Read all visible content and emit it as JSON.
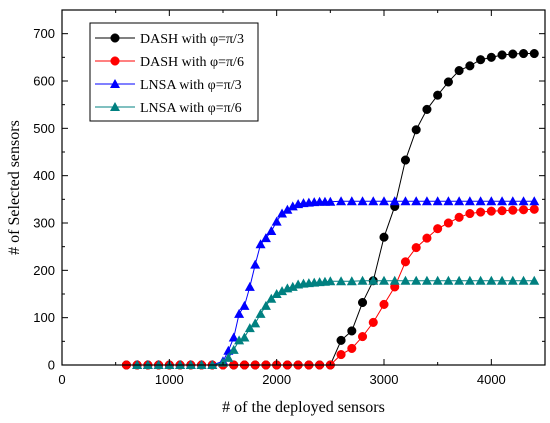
{
  "chart_data": {
    "type": "line",
    "title": "",
    "xlabel": "# of the deployed sensors",
    "ylabel": "# of Selected sensors",
    "xlim": [
      0,
      4500
    ],
    "ylim": [
      0,
      750
    ],
    "xticks": [
      0,
      1000,
      2000,
      3000,
      4000
    ],
    "yticks": [
      0,
      100,
      200,
      300,
      400,
      500,
      600,
      700
    ],
    "grid": false,
    "legend_position": "top-left",
    "series": [
      {
        "name": "DASH with φ=π/3",
        "color": "#000000",
        "marker": "circle",
        "x": [
          600,
          700,
          800,
          900,
          1000,
          1100,
          1200,
          1300,
          1400,
          1500,
          1600,
          1700,
          1800,
          1900,
          2000,
          2100,
          2200,
          2300,
          2400,
          2500,
          2600,
          2700,
          2800,
          2900,
          3000,
          3100,
          3200,
          3300,
          3400,
          3500,
          3600,
          3700,
          3800,
          3900,
          4000,
          4100,
          4200,
          4300,
          4400
        ],
        "y": [
          0,
          0,
          0,
          0,
          0,
          0,
          0,
          0,
          0,
          0,
          0,
          0,
          0,
          0,
          0,
          0,
          0,
          0,
          0,
          0,
          52,
          72,
          132,
          178,
          270,
          335,
          433,
          497,
          540,
          570,
          598,
          622,
          632,
          645,
          650,
          655,
          657,
          658,
          658
        ]
      },
      {
        "name": "DASH with φ=π/6",
        "color": "#ff0000",
        "marker": "circle",
        "x": [
          600,
          700,
          800,
          900,
          1000,
          1100,
          1200,
          1300,
          1400,
          1500,
          1600,
          1700,
          1800,
          1900,
          2000,
          2100,
          2200,
          2300,
          2400,
          2500,
          2600,
          2700,
          2800,
          2900,
          3000,
          3100,
          3200,
          3300,
          3400,
          3500,
          3600,
          3700,
          3800,
          3900,
          4000,
          4100,
          4200,
          4300,
          4400
        ],
        "y": [
          0,
          0,
          0,
          0,
          0,
          0,
          0,
          0,
          0,
          0,
          0,
          0,
          0,
          0,
          0,
          0,
          0,
          0,
          0,
          0,
          22,
          35,
          60,
          90,
          128,
          165,
          218,
          248,
          268,
          288,
          300,
          312,
          320,
          323,
          325,
          326,
          327,
          328,
          329
        ]
      },
      {
        "name": "LNSA with φ=π/3",
        "color": "#0000ff",
        "marker": "triangle",
        "x": [
          700,
          800,
          900,
          1000,
          1100,
          1200,
          1300,
          1400,
          1500,
          1550,
          1600,
          1650,
          1700,
          1750,
          1800,
          1850,
          1900,
          1950,
          2000,
          2050,
          2100,
          2150,
          2200,
          2250,
          2300,
          2350,
          2400,
          2450,
          2500,
          2600,
          2700,
          2800,
          2900,
          3000,
          3100,
          3200,
          3300,
          3400,
          3500,
          3600,
          3700,
          3800,
          3900,
          4000,
          4100,
          4200,
          4300,
          4400
        ],
        "y": [
          0,
          0,
          0,
          0,
          0,
          0,
          0,
          0,
          8,
          30,
          58,
          108,
          125,
          165,
          212,
          255,
          268,
          283,
          303,
          320,
          328,
          335,
          340,
          342,
          343,
          344,
          345,
          345,
          345,
          346,
          346,
          346,
          346,
          346,
          346,
          346,
          346,
          346,
          346,
          346,
          346,
          346,
          346,
          346,
          346,
          346,
          346,
          346
        ]
      },
      {
        "name": "LNSA with φ=π/6",
        "color": "#008080",
        "marker": "triangle",
        "x": [
          700,
          800,
          900,
          1000,
          1100,
          1200,
          1300,
          1400,
          1500,
          1550,
          1600,
          1650,
          1700,
          1750,
          1800,
          1850,
          1900,
          1950,
          2000,
          2050,
          2100,
          2150,
          2200,
          2250,
          2300,
          2350,
          2400,
          2450,
          2500,
          2600,
          2700,
          2800,
          2900,
          3000,
          3100,
          3200,
          3300,
          3400,
          3500,
          3600,
          3700,
          3800,
          3900,
          4000,
          4100,
          4200,
          4300,
          4400
        ],
        "y": [
          0,
          0,
          0,
          0,
          0,
          0,
          0,
          0,
          5,
          15,
          32,
          52,
          58,
          78,
          88,
          108,
          125,
          140,
          150,
          156,
          162,
          165,
          170,
          172,
          173,
          174,
          175,
          176,
          177,
          177,
          177,
          178,
          178,
          178,
          178,
          178,
          178,
          178,
          178,
          178,
          178,
          178,
          178,
          178,
          178,
          178,
          178,
          178
        ]
      }
    ]
  }
}
